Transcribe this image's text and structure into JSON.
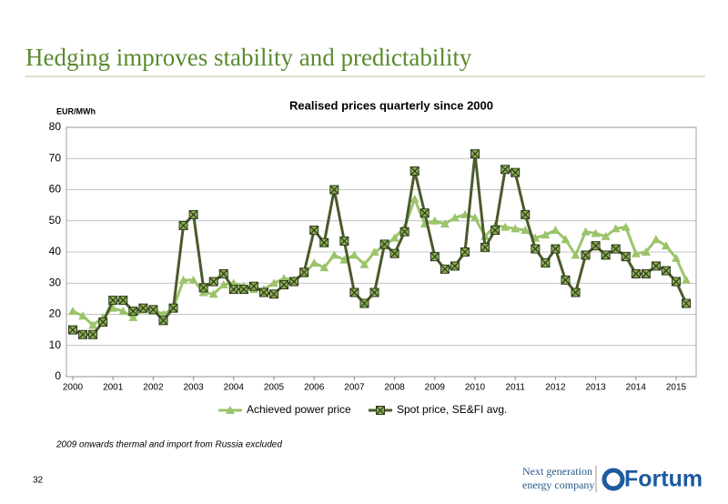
{
  "slide": {
    "title": "Hedging improves stability and predictability",
    "footnote": "2009 onwards thermal and import from Russia excluded",
    "page_number": "32",
    "tagline": [
      "Next generation",
      "energy company"
    ],
    "brand": "Fortum"
  },
  "chart_data": {
    "type": "line",
    "title": "Realised prices quarterly since 2000",
    "y_label": "EUR/MWh",
    "categories": [
      "2000",
      null,
      null,
      null,
      "2001",
      null,
      null,
      null,
      "2002",
      null,
      null,
      null,
      "2003",
      null,
      null,
      null,
      "2004",
      null,
      null,
      null,
      "2005",
      null,
      null,
      null,
      "2006",
      null,
      null,
      null,
      "2007",
      null,
      null,
      null,
      "2008",
      null,
      null,
      null,
      "2009",
      null,
      null,
      null,
      "2010",
      null,
      null,
      null,
      "2011",
      null,
      null,
      null,
      "2012",
      null,
      null,
      null,
      "2013",
      null,
      null,
      null,
      "2014",
      null,
      null,
      null,
      "2015",
      null
    ],
    "series": [
      {
        "name": "Achieved power price",
        "color": "#9bc46a",
        "marker": "triangle",
        "values": [
          21,
          19.5,
          16.5,
          19,
          22,
          21,
          19,
          21.5,
          21.5,
          20,
          22,
          31,
          31,
          27,
          26.5,
          29.5,
          30,
          29,
          28,
          28,
          30,
          31.5,
          31,
          33,
          36.5,
          35,
          39,
          37.5,
          39,
          36,
          40,
          42,
          44.5,
          48,
          57,
          49,
          50,
          49,
          51,
          52,
          51,
          45,
          48.5,
          48,
          47.5,
          47,
          44.5,
          45.5,
          47,
          44,
          39,
          46.5,
          46,
          45,
          47.5,
          48,
          39.5,
          40,
          44,
          42,
          38,
          31
        ]
      },
      {
        "name": "Spot price, SE&FI avg.",
        "color": "#4a5a2c",
        "marker": "square-x",
        "values": [
          15,
          13.5,
          13.5,
          17.5,
          24.5,
          24.5,
          21,
          22,
          21.5,
          18,
          22,
          48.5,
          52,
          28.5,
          30.5,
          33,
          28,
          28,
          29,
          27,
          26.5,
          29.5,
          30.5,
          33.5,
          47,
          43,
          60,
          43.5,
          27,
          23.5,
          27,
          42.5,
          39.5,
          46.5,
          66,
          52.5,
          38.5,
          34.5,
          35.5,
          40,
          71.5,
          41.5,
          47,
          66.5,
          65.5,
          52,
          41,
          36.5,
          41,
          31,
          27,
          39,
          42,
          39,
          41,
          38.5,
          33,
          33,
          35.5,
          34,
          30.5,
          23.5
        ]
      }
    ],
    "ylim": [
      0,
      80
    ],
    "yticks": [
      0,
      10,
      20,
      30,
      40,
      50,
      60,
      70,
      80
    ],
    "grid": true,
    "legend": "bottom"
  }
}
